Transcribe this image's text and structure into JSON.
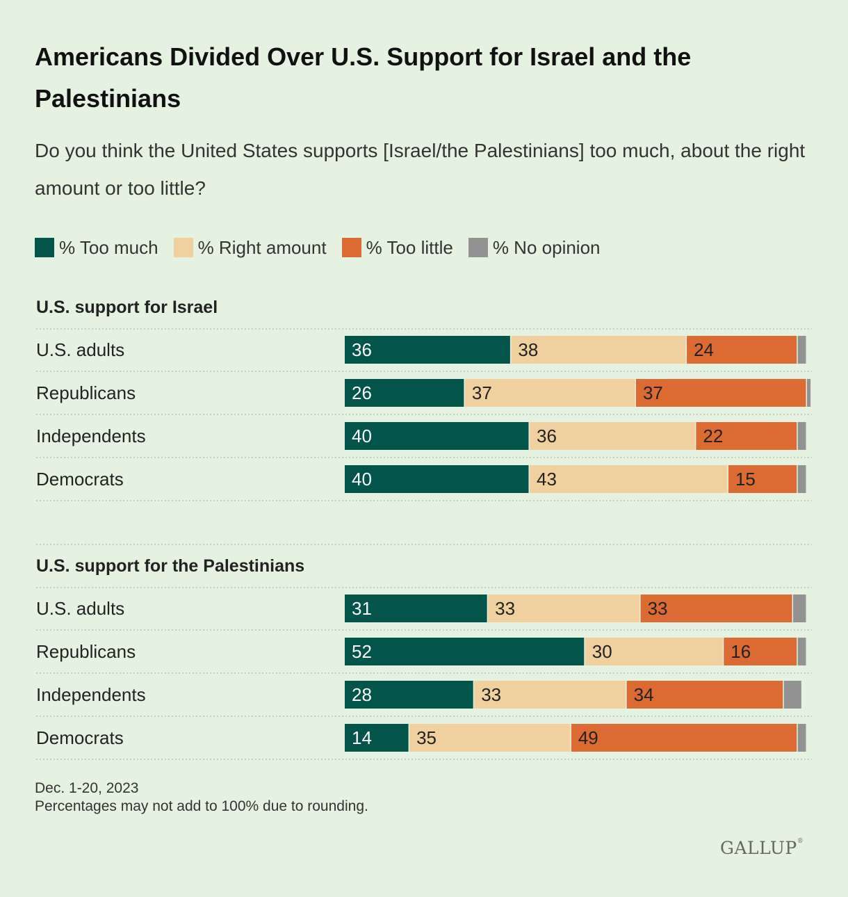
{
  "title": "Americans Divided Over U.S. Support for Israel and the Palestinians",
  "subtitle": "Do you think the United States supports [Israel/the Palestinians] too much, about the right amount or too little?",
  "legend": [
    {
      "label": "% Too much",
      "color": "#03544a"
    },
    {
      "label": "% Right amount",
      "color": "#f0d09e"
    },
    {
      "label": "% Too little",
      "color": "#db6a33"
    },
    {
      "label": "% No opinion",
      "color": "#929292"
    }
  ],
  "chart_data": {
    "type": "bar",
    "orientation": "horizontal",
    "stacked": true,
    "title": "Americans Divided Over U.S. Support for Israel and the Palestinians",
    "series_names": [
      "% Too much",
      "% Right amount",
      "% Too little",
      "% No opinion"
    ],
    "series_colors": [
      "#03544a",
      "#f0d09e",
      "#db6a33",
      "#929292"
    ],
    "panels": [
      {
        "title": "U.S. support for Israel",
        "categories": [
          "U.S. adults",
          "Republicans",
          "Independents",
          "Democrats"
        ],
        "values": [
          [
            36,
            38,
            24,
            2
          ],
          [
            26,
            37,
            37,
            1
          ],
          [
            40,
            36,
            22,
            2
          ],
          [
            40,
            43,
            15,
            2
          ]
        ]
      },
      {
        "title": "U.S. support for the Palestinians",
        "categories": [
          "U.S. adults",
          "Republicans",
          "Independents",
          "Democrats"
        ],
        "values": [
          [
            31,
            33,
            33,
            3
          ],
          [
            52,
            30,
            16,
            2
          ],
          [
            28,
            33,
            34,
            4
          ],
          [
            14,
            35,
            49,
            2
          ]
        ]
      }
    ]
  },
  "footnote": {
    "date": "Dec. 1-20, 2023",
    "note": "Percentages may not add to 100% due to rounding."
  },
  "brand": "GALLUP"
}
